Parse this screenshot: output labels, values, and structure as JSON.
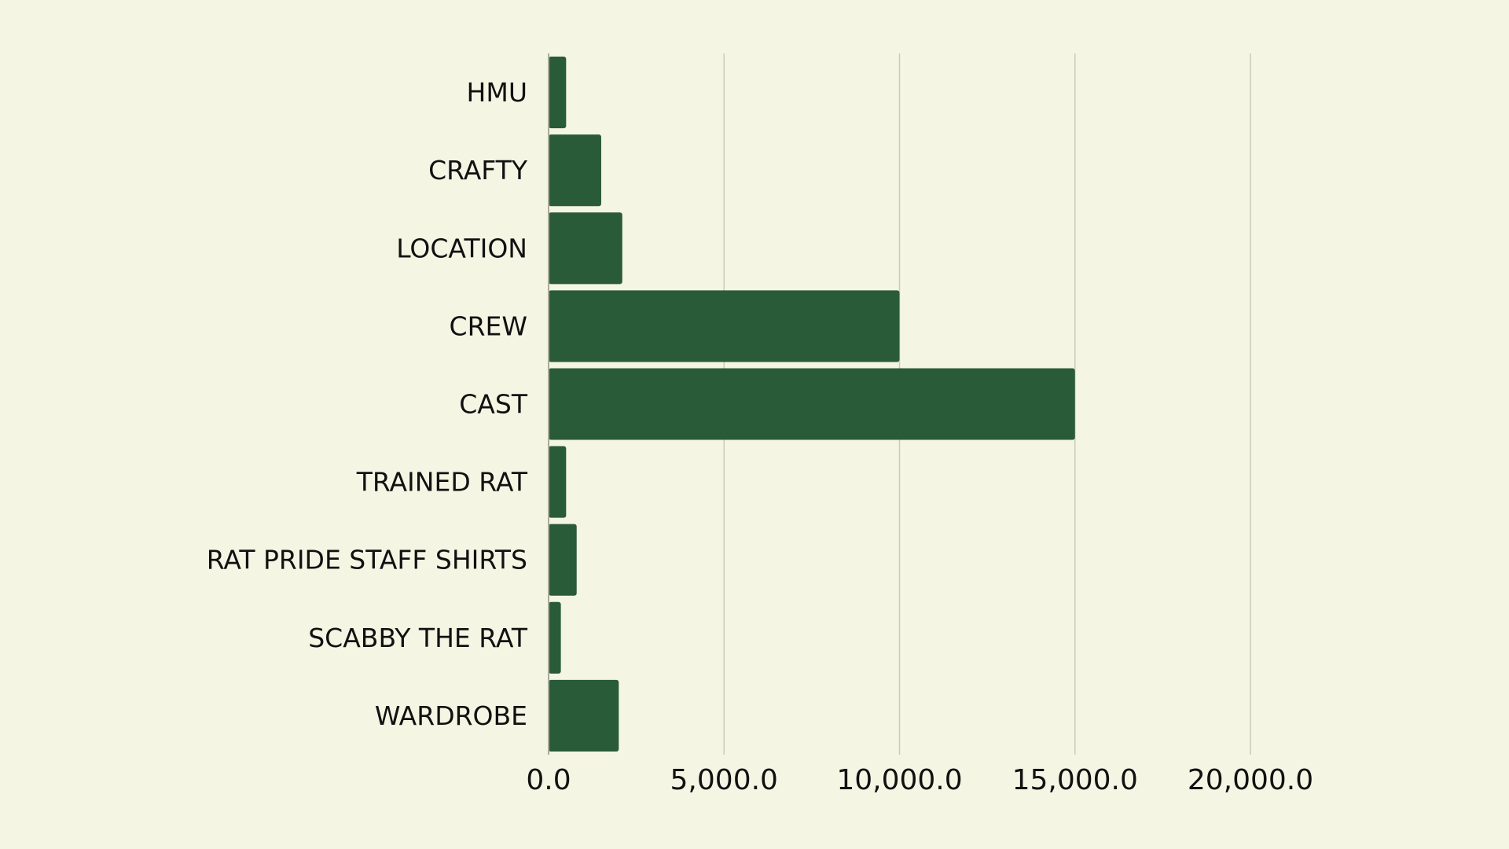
{
  "colors": {
    "background": "#f5f5e4",
    "bar": "#2a5b38",
    "grid": "#c9cbbd",
    "axis": "#a8ab9c",
    "text": "#111111"
  },
  "chart_data": {
    "type": "bar",
    "orientation": "horizontal",
    "title": "",
    "xlabel": "",
    "ylabel": "",
    "categories": [
      "HMU",
      "CRAFTY",
      "LOCATION",
      "CREW",
      "CAST",
      "TRAINED RAT",
      "RAT PRIDE STAFF SHIRTS",
      "SCABBY THE RAT",
      "WARDROBE"
    ],
    "values": [
      500,
      1500,
      2100,
      10000,
      15000,
      500,
      800,
      350,
      2000
    ],
    "xlim": [
      0,
      20000
    ],
    "x_ticks": [
      0,
      5000,
      10000,
      15000,
      20000
    ],
    "x_tick_labels": [
      "0.0",
      "5,000.0",
      "10,000.0",
      "15,000.0",
      "20,000.0"
    ],
    "grid": "vertical",
    "legend": "none"
  }
}
